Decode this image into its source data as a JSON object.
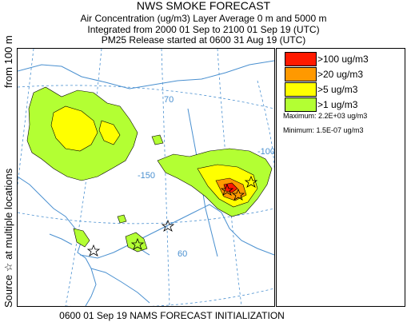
{
  "title": "NWS SMOKE FORECAST",
  "subtitle1": "Air Concentration (ug/m3) Layer Average    0 m and  5000 m",
  "subtitle2": "Integrated from 2000 01 Sep to 2100 01 Sep 19 (UTC)",
  "subtitle3": "PM25 Release started at 0600 31 Aug 19 (UTC)",
  "side_label_top": "from   100 m",
  "side_label_bottom": "Source ☆  at multiple locations",
  "footer": "0600 01 Sep 19 NAMS FORECAST INITIALIZATION",
  "legend": [
    {
      "label": ">100 ug/m3",
      "color": "#ff1a00"
    },
    {
      "label": ">20 ug/m3",
      "color": "#ff9900"
    },
    {
      "label": ">5 ug/m3",
      "color": "#ffff00"
    },
    {
      "label": ">1 ug/m3",
      "color": "#b3ff33"
    }
  ],
  "maximum": "Maximum: 2.2E+03 ug/m3",
  "minimum": "Minimum: 1.5E-07 ug/m3",
  "graticule_labels": {
    "lat_70": "70",
    "lon_m150": "-150",
    "lon_m100": "-100",
    "lat_60": "60"
  },
  "colors": {
    "coast": "#4a90d0",
    "graticule": "#4a90d0",
    "outline": "#000000"
  }
}
